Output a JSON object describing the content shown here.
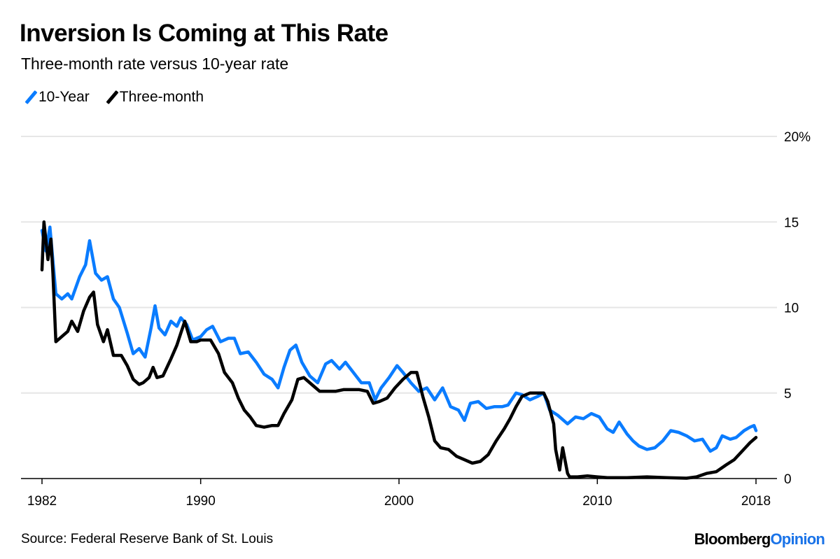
{
  "title": "Inversion Is Coming at This Rate",
  "subtitle": "Three-month rate versus 10-year rate",
  "source": "Source: Federal Reserve Bank of St. Louis",
  "logo": {
    "part1": "Bloomberg",
    "part2": "Opinion"
  },
  "colors": {
    "ten_year": "#0a7cff",
    "three_month": "#000000",
    "grid": "#e6e6e6"
  },
  "chart_data": {
    "type": "line",
    "title": "Inversion Is Coming at This Rate",
    "subtitle": "Three-month rate versus 10-year rate",
    "xlim": [
      1982,
      2018
    ],
    "ylim": [
      0,
      20
    ],
    "yticks": [
      0,
      5,
      10,
      15,
      20
    ],
    "ytick_labels": [
      "0",
      "5",
      "10",
      "15",
      "20%"
    ],
    "xticks": [
      1982,
      1990,
      2000,
      2010,
      2018
    ],
    "xtick_labels": [
      "1982",
      "1990",
      "2000",
      "2010",
      "2018"
    ],
    "grid": true,
    "legend": "top-left",
    "series": [
      {
        "name": "10-Year",
        "color": "#0a7cff",
        "points": [
          [
            1982.0,
            14.5
          ],
          [
            1982.2,
            13.3
          ],
          [
            1982.4,
            14.7
          ],
          [
            1982.7,
            10.8
          ],
          [
            1983.0,
            10.5
          ],
          [
            1983.3,
            10.8
          ],
          [
            1983.5,
            10.5
          ],
          [
            1983.9,
            11.8
          ],
          [
            1984.2,
            12.5
          ],
          [
            1984.4,
            13.9
          ],
          [
            1984.7,
            12.0
          ],
          [
            1985.0,
            11.6
          ],
          [
            1985.3,
            11.8
          ],
          [
            1985.6,
            10.5
          ],
          [
            1985.9,
            10.0
          ],
          [
            1986.3,
            8.5
          ],
          [
            1986.6,
            7.3
          ],
          [
            1986.9,
            7.6
          ],
          [
            1987.2,
            7.1
          ],
          [
            1987.5,
            8.8
          ],
          [
            1987.7,
            10.1
          ],
          [
            1987.9,
            8.8
          ],
          [
            1988.2,
            8.4
          ],
          [
            1988.5,
            9.2
          ],
          [
            1988.8,
            8.9
          ],
          [
            1989.0,
            9.4
          ],
          [
            1989.3,
            9.0
          ],
          [
            1989.6,
            8.1
          ],
          [
            1990.0,
            8.3
          ],
          [
            1990.3,
            8.7
          ],
          [
            1990.6,
            8.9
          ],
          [
            1991.0,
            8.0
          ],
          [
            1991.4,
            8.2
          ],
          [
            1991.7,
            8.2
          ],
          [
            1992.0,
            7.3
          ],
          [
            1992.4,
            7.4
          ],
          [
            1992.8,
            6.8
          ],
          [
            1993.2,
            6.1
          ],
          [
            1993.6,
            5.8
          ],
          [
            1993.9,
            5.3
          ],
          [
            1994.2,
            6.5
          ],
          [
            1994.5,
            7.5
          ],
          [
            1994.8,
            7.8
          ],
          [
            1995.1,
            6.8
          ],
          [
            1995.5,
            6.0
          ],
          [
            1995.9,
            5.6
          ],
          [
            1996.3,
            6.7
          ],
          [
            1996.6,
            6.9
          ],
          [
            1997.0,
            6.4
          ],
          [
            1997.3,
            6.8
          ],
          [
            1997.7,
            6.2
          ],
          [
            1998.1,
            5.6
          ],
          [
            1998.5,
            5.6
          ],
          [
            1998.8,
            4.6
          ],
          [
            1999.1,
            5.3
          ],
          [
            1999.5,
            5.9
          ],
          [
            1999.9,
            6.6
          ],
          [
            2000.2,
            6.2
          ],
          [
            2000.6,
            5.6
          ],
          [
            2001.0,
            5.1
          ],
          [
            2001.4,
            5.3
          ],
          [
            2001.8,
            4.6
          ],
          [
            2002.2,
            5.3
          ],
          [
            2002.6,
            4.2
          ],
          [
            2003.0,
            4.0
          ],
          [
            2003.3,
            3.4
          ],
          [
            2003.6,
            4.4
          ],
          [
            2004.0,
            4.5
          ],
          [
            2004.4,
            4.1
          ],
          [
            2004.8,
            4.2
          ],
          [
            2005.2,
            4.2
          ],
          [
            2005.5,
            4.3
          ],
          [
            2005.9,
            5.0
          ],
          [
            2006.2,
            4.9
          ],
          [
            2006.6,
            4.6
          ],
          [
            2007.0,
            4.8
          ],
          [
            2007.3,
            5.0
          ],
          [
            2007.6,
            4.0
          ],
          [
            2008.0,
            3.7
          ],
          [
            2008.3,
            3.4
          ],
          [
            2008.5,
            3.2
          ],
          [
            2008.9,
            3.6
          ],
          [
            2009.3,
            3.5
          ],
          [
            2009.7,
            3.8
          ],
          [
            2010.1,
            3.6
          ],
          [
            2010.5,
            2.9
          ],
          [
            2010.8,
            2.7
          ],
          [
            2011.1,
            3.3
          ],
          [
            2011.5,
            2.6
          ],
          [
            2011.8,
            2.2
          ],
          [
            2012.1,
            1.9
          ],
          [
            2012.5,
            1.7
          ],
          [
            2012.9,
            1.8
          ],
          [
            2013.3,
            2.2
          ],
          [
            2013.7,
            2.8
          ],
          [
            2014.1,
            2.7
          ],
          [
            2014.5,
            2.5
          ],
          [
            2014.9,
            2.2
          ],
          [
            2015.3,
            2.3
          ],
          [
            2015.7,
            1.6
          ],
          [
            2016.0,
            1.8
          ],
          [
            2016.3,
            2.5
          ],
          [
            2016.7,
            2.3
          ],
          [
            2017.0,
            2.4
          ],
          [
            2017.4,
            2.8
          ],
          [
            2017.7,
            3.0
          ],
          [
            2017.9,
            3.1
          ],
          [
            2018.0,
            2.8
          ]
        ]
      },
      {
        "name": "Three-month",
        "color": "#000000",
        "points": [
          [
            1982.0,
            12.2
          ],
          [
            1982.1,
            15.0
          ],
          [
            1982.3,
            12.8
          ],
          [
            1982.45,
            14.0
          ],
          [
            1982.55,
            12.0
          ],
          [
            1982.7,
            8.0
          ],
          [
            1983.0,
            8.3
          ],
          [
            1983.3,
            8.6
          ],
          [
            1983.5,
            9.2
          ],
          [
            1983.8,
            8.6
          ],
          [
            1984.1,
            9.8
          ],
          [
            1984.4,
            10.6
          ],
          [
            1984.6,
            10.9
          ],
          [
            1984.8,
            9.0
          ],
          [
            1985.1,
            8.0
          ],
          [
            1985.3,
            8.7
          ],
          [
            1985.6,
            7.2
          ],
          [
            1986.0,
            7.2
          ],
          [
            1986.3,
            6.6
          ],
          [
            1986.6,
            5.8
          ],
          [
            1986.9,
            5.5
          ],
          [
            1987.1,
            5.6
          ],
          [
            1987.4,
            5.9
          ],
          [
            1987.6,
            6.5
          ],
          [
            1987.8,
            5.9
          ],
          [
            1988.1,
            6.0
          ],
          [
            1988.5,
            7.0
          ],
          [
            1988.8,
            7.8
          ],
          [
            1989.0,
            8.5
          ],
          [
            1989.2,
            9.2
          ],
          [
            1989.5,
            8.0
          ],
          [
            1989.8,
            8.0
          ],
          [
            1990.0,
            8.1
          ],
          [
            1990.5,
            8.1
          ],
          [
            1990.9,
            7.3
          ],
          [
            1991.2,
            6.2
          ],
          [
            1991.6,
            5.6
          ],
          [
            1991.9,
            4.7
          ],
          [
            1992.2,
            4.0
          ],
          [
            1992.5,
            3.6
          ],
          [
            1992.8,
            3.1
          ],
          [
            1993.2,
            3.0
          ],
          [
            1993.6,
            3.1
          ],
          [
            1993.9,
            3.1
          ],
          [
            1994.2,
            3.8
          ],
          [
            1994.6,
            4.6
          ],
          [
            1994.9,
            5.8
          ],
          [
            1995.2,
            5.9
          ],
          [
            1995.6,
            5.5
          ],
          [
            1996.0,
            5.1
          ],
          [
            1996.4,
            5.1
          ],
          [
            1996.8,
            5.1
          ],
          [
            1997.2,
            5.2
          ],
          [
            1997.6,
            5.2
          ],
          [
            1998.0,
            5.2
          ],
          [
            1998.4,
            5.1
          ],
          [
            1998.7,
            4.4
          ],
          [
            1999.0,
            4.5
          ],
          [
            1999.4,
            4.7
          ],
          [
            1999.8,
            5.3
          ],
          [
            2000.2,
            5.8
          ],
          [
            2000.6,
            6.2
          ],
          [
            2000.9,
            6.2
          ],
          [
            2001.2,
            4.8
          ],
          [
            2001.5,
            3.6
          ],
          [
            2001.8,
            2.2
          ],
          [
            2002.1,
            1.8
          ],
          [
            2002.5,
            1.7
          ],
          [
            2002.9,
            1.3
          ],
          [
            2003.3,
            1.1
          ],
          [
            2003.7,
            0.9
          ],
          [
            2004.1,
            1.0
          ],
          [
            2004.5,
            1.4
          ],
          [
            2004.9,
            2.2
          ],
          [
            2005.3,
            2.9
          ],
          [
            2005.6,
            3.5
          ],
          [
            2005.9,
            4.2
          ],
          [
            2006.2,
            4.8
          ],
          [
            2006.6,
            5.0
          ],
          [
            2006.9,
            5.0
          ],
          [
            2007.3,
            5.0
          ],
          [
            2007.5,
            4.5
          ],
          [
            2007.8,
            3.2
          ],
          [
            2007.9,
            1.7
          ],
          [
            2008.1,
            0.5
          ],
          [
            2008.25,
            1.8
          ],
          [
            2008.5,
            0.3
          ],
          [
            2008.6,
            0.1
          ],
          [
            2009.0,
            0.1
          ],
          [
            2009.5,
            0.15
          ],
          [
            2010.0,
            0.1
          ],
          [
            2010.5,
            0.05
          ],
          [
            2011.5,
            0.05
          ],
          [
            2012.5,
            0.1
          ],
          [
            2013.5,
            0.05
          ],
          [
            2014.5,
            0.02
          ],
          [
            2015.0,
            0.1
          ],
          [
            2015.5,
            0.3
          ],
          [
            2016.0,
            0.4
          ],
          [
            2016.5,
            0.8
          ],
          [
            2016.9,
            1.1
          ],
          [
            2017.3,
            1.6
          ],
          [
            2017.7,
            2.1
          ],
          [
            2018.0,
            2.4
          ]
        ]
      }
    ]
  }
}
